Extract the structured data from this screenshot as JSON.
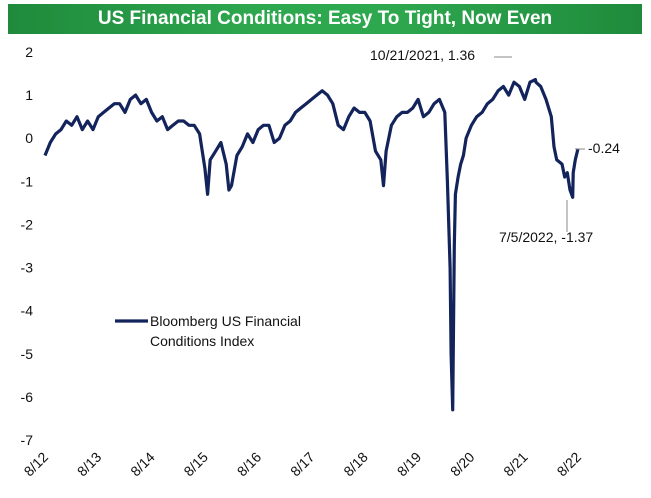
{
  "title": "US Financial Conditions: Easy To Tight, Now Even",
  "colors": {
    "title_bg": "#2ea84f",
    "line": "#13235b",
    "text": "#111111"
  },
  "chart_data": {
    "type": "line",
    "title": "US Financial Conditions: Easy To Tight, Now Even",
    "xlabel": "",
    "ylabel": "",
    "ylim": [
      -7,
      2
    ],
    "y_ticks": [
      "2",
      "1",
      "0",
      "-1",
      "-2",
      "-3",
      "-4",
      "-5",
      "-6",
      "-7"
    ],
    "x_ticks": [
      "8/12",
      "8/13",
      "8/14",
      "8/15",
      "8/16",
      "8/17",
      "8/18",
      "8/19",
      "8/20",
      "8/21",
      "8/22"
    ],
    "x_range": [
      2012.6,
      2022.6
    ],
    "grid": false,
    "legend": {
      "label_line1": "Bloomberg US Financial",
      "label_line2": "Conditions Index",
      "placement": "center-left"
    },
    "series": [
      {
        "name": "Bloomberg US Financial Conditions Index",
        "x": [
          2012.6,
          2012.7,
          2012.8,
          2012.9,
          2013.0,
          2013.1,
          2013.2,
          2013.3,
          2013.4,
          2013.5,
          2013.6,
          2013.7,
          2013.8,
          2013.9,
          2014.0,
          2014.1,
          2014.2,
          2014.3,
          2014.4,
          2014.5,
          2014.6,
          2014.7,
          2014.8,
          2014.9,
          2015.0,
          2015.1,
          2015.2,
          2015.3,
          2015.4,
          2015.5,
          2015.6,
          2015.65,
          2015.7,
          2015.8,
          2015.9,
          2016.0,
          2016.05,
          2016.1,
          2016.2,
          2016.3,
          2016.4,
          2016.5,
          2016.6,
          2016.7,
          2016.8,
          2016.9,
          2017.0,
          2017.1,
          2017.2,
          2017.3,
          2017.4,
          2017.5,
          2017.6,
          2017.7,
          2017.8,
          2017.9,
          2018.0,
          2018.1,
          2018.2,
          2018.3,
          2018.4,
          2018.5,
          2018.6,
          2018.7,
          2018.8,
          2018.9,
          2018.95,
          2019.0,
          2019.1,
          2019.2,
          2019.3,
          2019.4,
          2019.5,
          2019.6,
          2019.7,
          2019.8,
          2019.9,
          2020.0,
          2020.1,
          2020.15,
          2020.2,
          2020.22,
          2020.25,
          2020.28,
          2020.3,
          2020.35,
          2020.4,
          2020.45,
          2020.5,
          2020.6,
          2020.7,
          2020.8,
          2020.9,
          2021.0,
          2021.1,
          2021.2,
          2021.3,
          2021.4,
          2021.5,
          2021.6,
          2021.7,
          2021.8,
          2021.81,
          2021.9,
          2022.0,
          2022.1,
          2022.15,
          2022.2,
          2022.3,
          2022.35,
          2022.4,
          2022.45,
          2022.5,
          2022.51,
          2022.55,
          2022.6
        ],
        "values": [
          -0.4,
          -0.1,
          0.1,
          0.2,
          0.4,
          0.3,
          0.5,
          0.2,
          0.4,
          0.2,
          0.5,
          0.6,
          0.7,
          0.8,
          0.8,
          0.6,
          0.9,
          1.0,
          0.8,
          0.9,
          0.6,
          0.4,
          0.5,
          0.2,
          0.3,
          0.4,
          0.4,
          0.3,
          0.3,
          0.1,
          -0.7,
          -1.3,
          -0.5,
          -0.3,
          -0.1,
          -0.6,
          -1.2,
          -1.1,
          -0.4,
          -0.2,
          0.1,
          -0.1,
          0.2,
          0.3,
          0.3,
          -0.1,
          0.0,
          0.3,
          0.4,
          0.6,
          0.7,
          0.8,
          0.9,
          1.0,
          1.1,
          1.0,
          0.8,
          0.3,
          0.2,
          0.5,
          0.7,
          0.6,
          0.6,
          0.4,
          -0.3,
          -0.5,
          -1.1,
          -0.3,
          0.3,
          0.5,
          0.6,
          0.6,
          0.7,
          0.9,
          0.5,
          0.6,
          0.8,
          0.9,
          0.6,
          -1.0,
          -3.0,
          -5.0,
          -6.3,
          -2.5,
          -1.3,
          -0.9,
          -0.6,
          -0.4,
          0.0,
          0.3,
          0.5,
          0.6,
          0.8,
          0.9,
          1.1,
          1.2,
          1.0,
          1.3,
          1.2,
          0.9,
          1.3,
          1.36,
          1.3,
          1.2,
          0.9,
          0.5,
          -0.2,
          -0.5,
          -0.6,
          -0.9,
          -0.8,
          -1.2,
          -1.37,
          -0.8,
          -0.5,
          -0.24
        ]
      }
    ],
    "annotations": [
      {
        "text": "10/21/2021, 1.36",
        "x": 2021.81,
        "y": 1.36
      },
      {
        "text": "-0.24",
        "x": 2022.6,
        "y": -0.24
      },
      {
        "text": "7/5/2022, -1.37",
        "x": 2022.51,
        "y": -1.37
      }
    ]
  }
}
